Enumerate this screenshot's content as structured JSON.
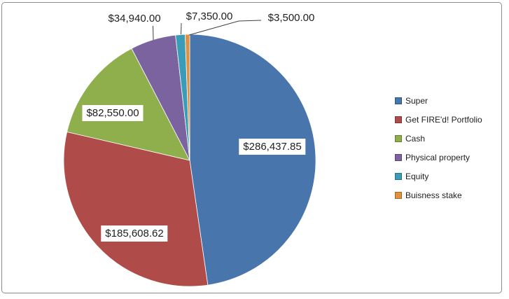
{
  "chart_data": {
    "type": "pie",
    "title": "",
    "legend_position": "right",
    "direction": "clockwise",
    "start_angle_deg": 0,
    "categories": [
      "Super",
      "Get FIRE'd! Portfolio",
      "Cash",
      "Physical property",
      "Equity",
      "Buisness stake"
    ],
    "values": [
      286437.85,
      185608.62,
      82550.0,
      34940.0,
      7350.0,
      3500.0
    ],
    "data_labels": [
      "$286,437.85",
      "$185,608.62",
      "$82,550.00",
      "$34,940.00",
      "$7,350.00",
      "$3,500.00"
    ],
    "colors": [
      "#4876ac",
      "#af4b48",
      "#8fae4c",
      "#7b63a0",
      "#3a9cb8",
      "#e0913f"
    ]
  }
}
